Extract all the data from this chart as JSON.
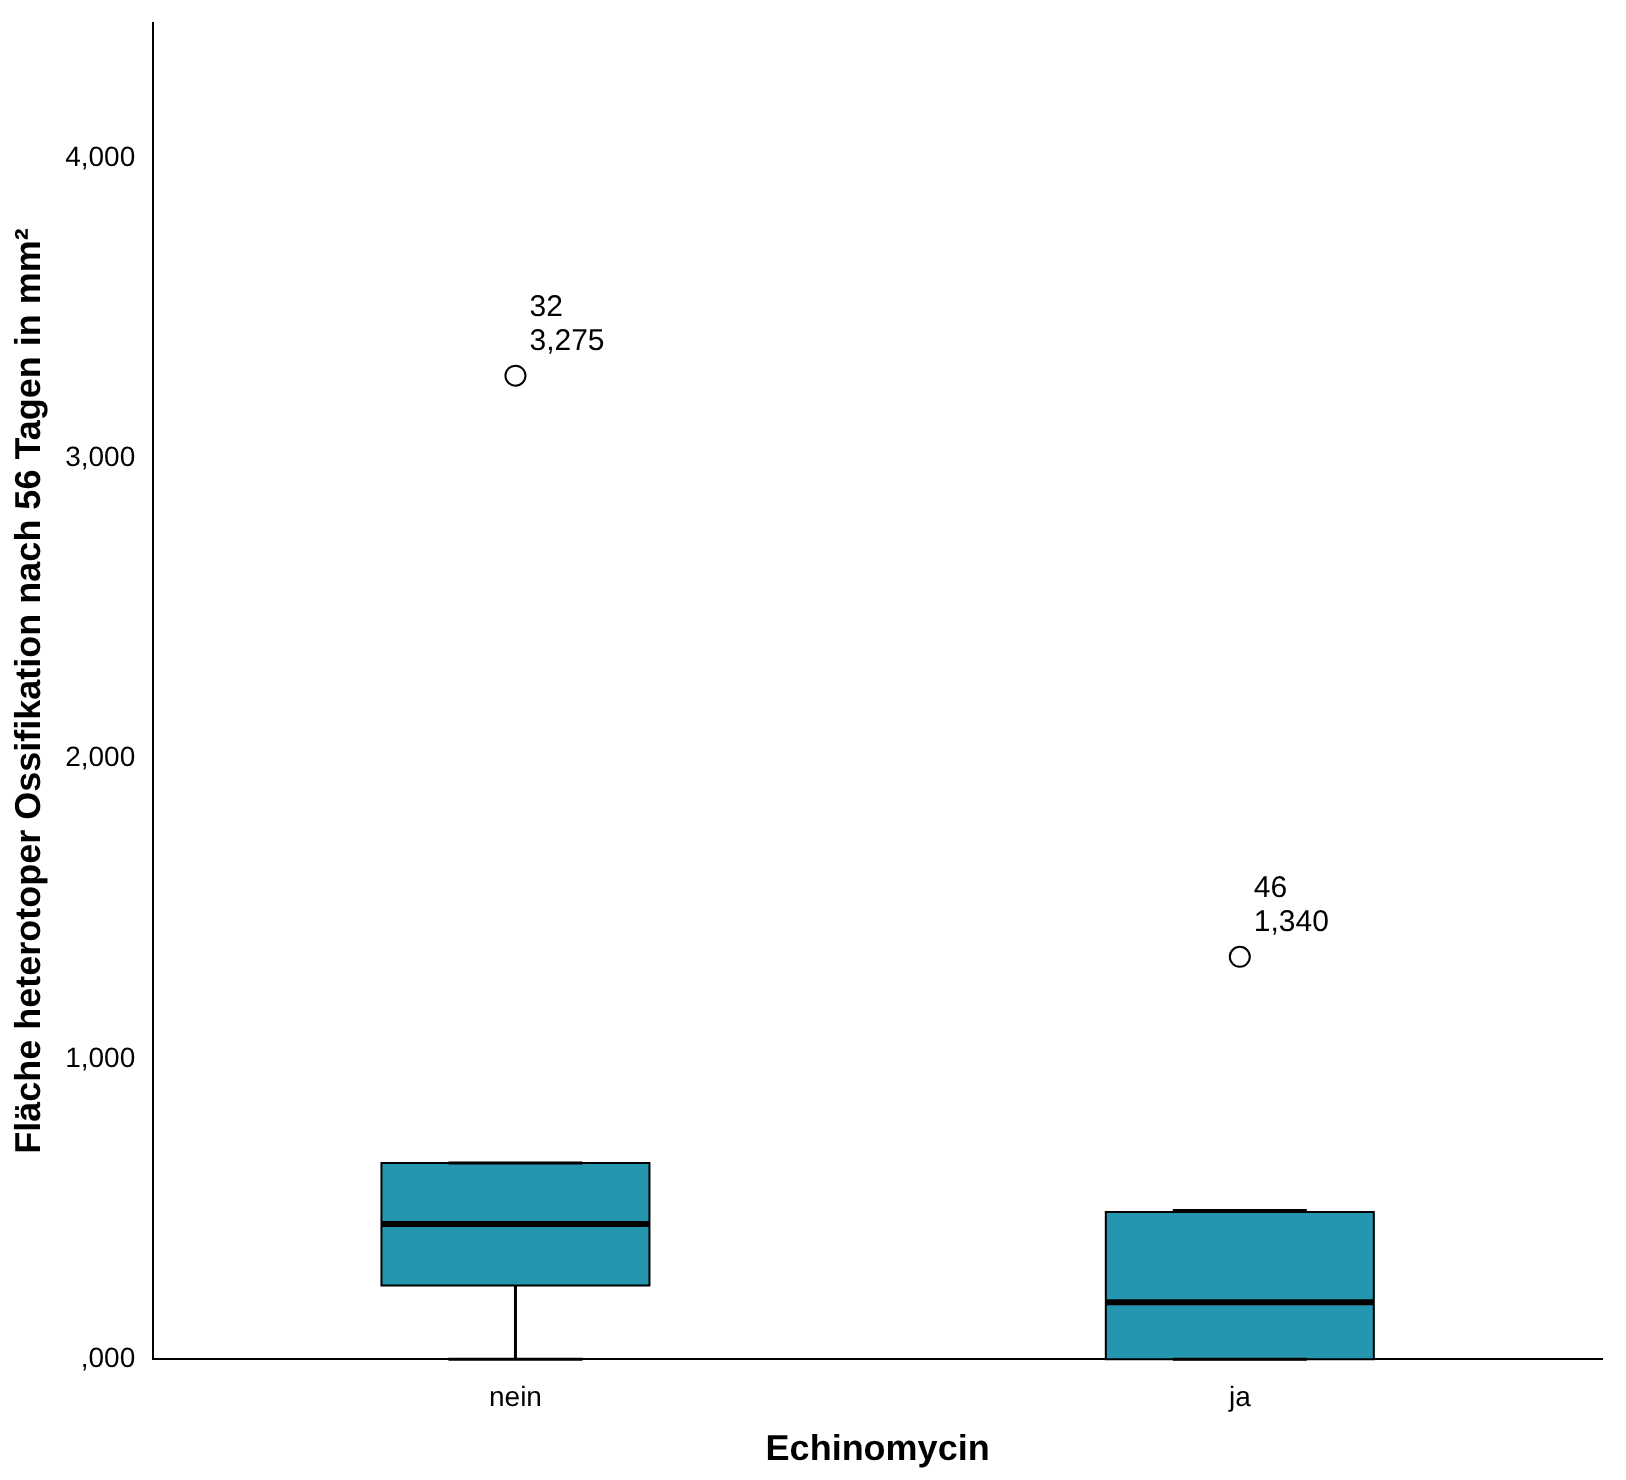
{
  "chart_data": {
    "type": "box",
    "xlabel": "Echinomycin",
    "ylabel": "Fläche heterotoper Ossifikation nach 56 Tagen in mm²",
    "categories": [
      "nein",
      "ja"
    ],
    "color": "#2596b0",
    "boxes": [
      {
        "low": 0,
        "q1": 245,
        "median": 450,
        "q3": 653,
        "high": 653,
        "outliers": [
          3275
        ]
      },
      {
        "low": 0,
        "q1": 0,
        "median": 190,
        "q3": 490,
        "high": 495,
        "outliers": [
          1340
        ]
      }
    ],
    "ylim": [
      0,
      4450
    ],
    "yticks": [
      {
        "value": 0,
        "label": ",000"
      },
      {
        "value": 1000,
        "label": "1,000"
      },
      {
        "value": 2000,
        "label": "2,000"
      },
      {
        "value": 3000,
        "label": "3,000"
      },
      {
        "value": 4000,
        "label": "4,000"
      }
    ],
    "grid": false,
    "legend": false,
    "annotations": [
      "32",
      "3,275",
      "46",
      "1,340"
    ]
  }
}
